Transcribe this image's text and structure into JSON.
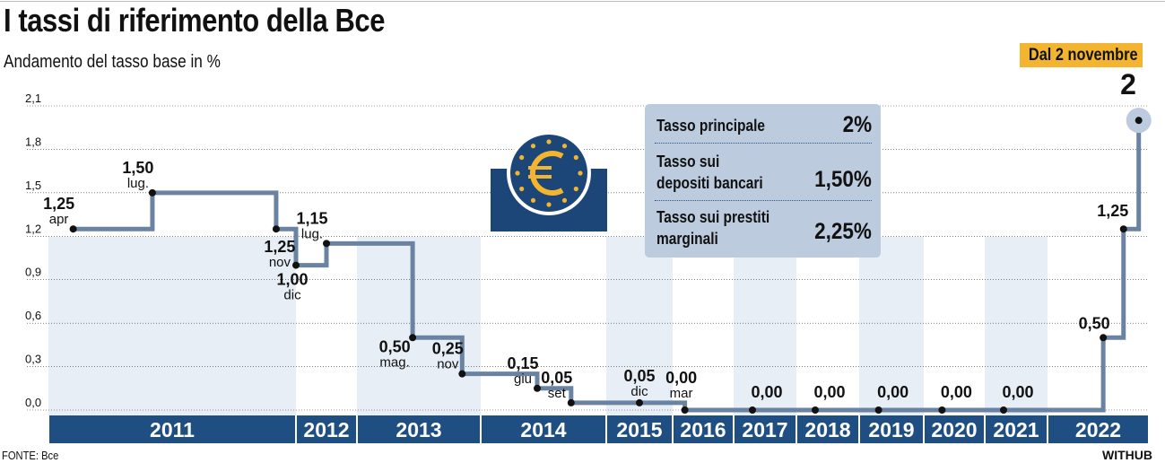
{
  "title": "I tassi di riferimento della Bce",
  "subtitle": "Andamento del tasso base in %",
  "badge": "Dal 2 novembre",
  "current_rate": "2",
  "info_box": {
    "rows": [
      {
        "label": "Tasso principale",
        "value": "2%"
      },
      {
        "label": "Tasso sui depositi bancari",
        "value": "1,50%"
      },
      {
        "label": "Tasso sui prestiti marginali",
        "value": "2,25%"
      }
    ]
  },
  "source": "FONTE: Bce",
  "brand": "WITHUB",
  "colors": {
    "line": "#6b83a3",
    "year_bar": "#1f4f82",
    "band": "#e7eef6",
    "badge": "#f3b530",
    "logo_bg": "#1d4678",
    "logo_fg": "#f3b530"
  },
  "icons": [
    "euro-logo-icon"
  ],
  "chart_data": {
    "type": "line",
    "step": true,
    "title": "I tassi di riferimento della Bce",
    "ylabel": "Andamento del tasso base in %",
    "ylim": [
      0,
      2.1
    ],
    "yticks": [
      "0,0",
      "0,3",
      "0,6",
      "0,9",
      "1,2",
      "1,5",
      "1,8",
      "2,1"
    ],
    "years": [
      "2011",
      "2012",
      "2013",
      "2014",
      "2015",
      "2016",
      "2017",
      "2018",
      "2019",
      "2020",
      "2021",
      "2022"
    ],
    "series": [
      {
        "points": [
          {
            "year": 2011.1,
            "value": 1.25,
            "label": "1,25",
            "month": "apr"
          },
          {
            "year": 2011.42,
            "value": 1.5,
            "label": "1,50",
            "month": "lug."
          },
          {
            "year": 2011.92,
            "value": 1.25,
            "label": "1,25",
            "month": "nov"
          },
          {
            "year": 2012.0,
            "value": 1.0,
            "label": "1,00",
            "month": "dic"
          },
          {
            "year": 2012.5,
            "value": 1.15,
            "label": "1,15",
            "month": "lug."
          },
          {
            "year": 2013.45,
            "value": 0.5,
            "label": "0,50",
            "month": "mag."
          },
          {
            "year": 2013.85,
            "value": 0.25,
            "label": "0,25",
            "month": "nov"
          },
          {
            "year": 2014.45,
            "value": 0.15,
            "label": "0,15",
            "month": "giu"
          },
          {
            "year": 2014.72,
            "value": 0.05,
            "label": "0,05",
            "month": "set"
          },
          {
            "year": 2015.5,
            "value": 0.05,
            "label": "0,05",
            "month": "dic"
          },
          {
            "year": 2016.2,
            "value": 0.0,
            "label": "0,00",
            "month": "mar"
          },
          {
            "year": 2017.3,
            "value": 0.0,
            "label": "0,00",
            "month": ""
          },
          {
            "year": 2018.3,
            "value": 0.0,
            "label": "0,00",
            "month": ""
          },
          {
            "year": 2019.3,
            "value": 0.0,
            "label": "0,00",
            "month": ""
          },
          {
            "year": 2020.3,
            "value": 0.0,
            "label": "0,00",
            "month": ""
          },
          {
            "year": 2021.3,
            "value": 0.0,
            "label": "0,00",
            "month": ""
          },
          {
            "year": 2022.55,
            "value": 0.5,
            "label": "0,50",
            "month": ""
          },
          {
            "year": 2022.75,
            "value": 1.25,
            "label": "1,25",
            "month": ""
          },
          {
            "year": 2022.9,
            "value": 2.0,
            "label": "",
            "month": ""
          }
        ]
      }
    ]
  }
}
